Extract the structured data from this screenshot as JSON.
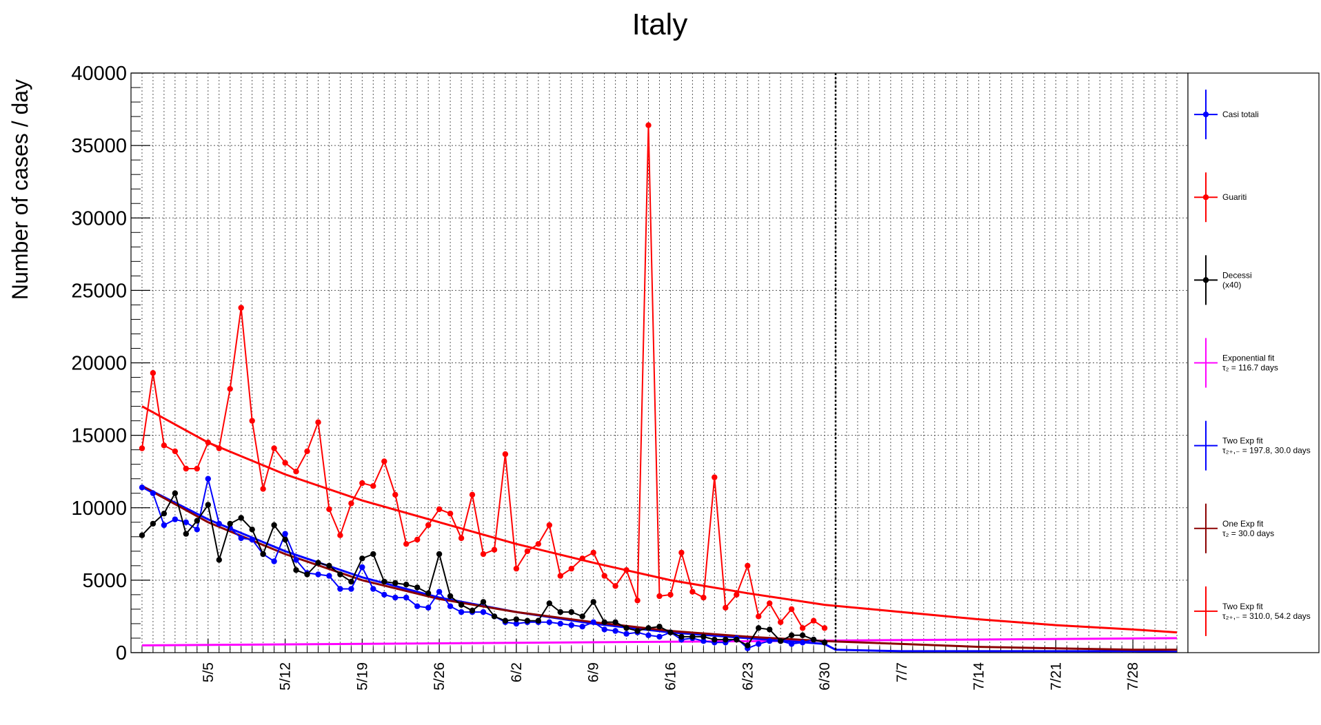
{
  "chart_data": {
    "type": "line",
    "title": "Italy",
    "xlabel": "",
    "ylabel": "Number of cases / day",
    "ylim": [
      0,
      40000
    ],
    "xlim": [
      "2020-04-28",
      "2020-08-02"
    ],
    "y_ticks": [
      "0",
      "5000",
      "10000",
      "15000",
      "20000",
      "25000",
      "30000",
      "35000",
      "40000"
    ],
    "x_ticks": [
      "5/5",
      "5/12",
      "5/19",
      "5/26",
      "6/2",
      "6/9",
      "6/16",
      "6/23",
      "6/30",
      "7/7",
      "7/14",
      "7/21",
      "7/28"
    ],
    "grid": true,
    "vertical_marker_date": "2020-07-01",
    "legend_position": "right",
    "series": [
      {
        "name": "Casi totali",
        "legend_lines": [
          "Casi totali"
        ],
        "color": "#0000ff",
        "style": "points",
        "start_date": "2020-04-29",
        "values": [
          11400,
          11000,
          8800,
          9200,
          9000,
          8500,
          12000,
          8900,
          8600,
          7900,
          7800,
          6800,
          6300,
          8200,
          6400,
          5500,
          5400,
          5300,
          4400,
          4400,
          5900,
          4400,
          4000,
          3800,
          3800,
          3200,
          3100,
          4200,
          3200,
          2800,
          2800,
          2800,
          2500,
          2100,
          2000,
          2100,
          2100,
          2100,
          2000,
          1900,
          1800,
          2100,
          1600,
          1500,
          1300,
          1400,
          1200,
          1100,
          1400,
          900,
          1000,
          800,
          700,
          700,
          1000,
          300,
          600,
          800,
          800,
          600,
          700,
          900,
          700
        ]
      },
      {
        "name": "Guariti",
        "legend_lines": [
          "Guariti"
        ],
        "color": "#ff0000",
        "style": "points",
        "start_date": "2020-04-29",
        "values": [
          14100,
          19300,
          14300,
          13900,
          12700,
          12700,
          14500,
          14100,
          18200,
          23800,
          16000,
          11300,
          14100,
          13100,
          12500,
          13900,
          15900,
          9900,
          8100,
          10300,
          11700,
          11500,
          13200,
          10900,
          7500,
          7800,
          8800,
          9900,
          9600,
          7900,
          10900,
          6800,
          7100,
          13700,
          5800,
          7000,
          7500,
          8800,
          5300,
          5800,
          6500,
          6900,
          5300,
          4600,
          5700,
          3600,
          36400,
          3900,
          4000,
          6900,
          4200,
          3800,
          12100,
          3100,
          4000,
          6000,
          2500,
          3400,
          2100,
          3000,
          1700,
          2200,
          1700
        ]
      },
      {
        "name": "Decessi",
        "legend_lines": [
          "Decessi",
          "(x40)"
        ],
        "color": "#000000",
        "style": "points",
        "start_date": "2020-04-29",
        "values": [
          8100,
          8900,
          9600,
          11000,
          8200,
          9100,
          10200,
          6400,
          8900,
          9300,
          8500,
          6800,
          8800,
          7800,
          5700,
          5400,
          6200,
          6000,
          5400,
          4900,
          6500,
          6800,
          4900,
          4800,
          4700,
          4500,
          4100,
          6800,
          3900,
          3300,
          2900,
          3500,
          2500,
          2200,
          2300,
          2200,
          2200,
          3400,
          2800,
          2800,
          2500,
          3500,
          2100,
          2100,
          1700,
          1500,
          1700,
          1800,
          1400,
          1100,
          1100,
          1100,
          900,
          900,
          900,
          500,
          1700,
          1600,
          800,
          1200,
          1200,
          900,
          700
        ]
      },
      {
        "name": "Exponential fit",
        "legend_lines": [
          "Exponential fit",
          "τ₂ = 116.7 days"
        ],
        "color": "#ff00ff",
        "style": "line",
        "x": [
          "2020-04-29",
          "2020-08-01"
        ],
        "values": [
          500,
          1000
        ]
      },
      {
        "name": "Two Exp fit",
        "legend_lines": [
          "Two Exp fit",
          "τ₂₊,₋ = 197.8, 30.0 days"
        ],
        "color": "#0000ff",
        "style": "line",
        "x": [
          "2020-04-29",
          "2020-05-05",
          "2020-05-12",
          "2020-05-19",
          "2020-05-26",
          "2020-06-02",
          "2020-06-09",
          "2020-06-16",
          "2020-06-23",
          "2020-06-30",
          "2020-07-01",
          "2020-07-07",
          "2020-07-14",
          "2020-07-21",
          "2020-07-28",
          "2020-08-01"
        ],
        "values": [
          11500,
          9200,
          7000,
          5200,
          3800,
          2800,
          2000,
          1400,
          1000,
          600,
          200,
          100,
          100,
          100,
          100,
          50
        ]
      },
      {
        "name": "One Exp fit",
        "legend_lines": [
          "One Exp fit",
          "τ₂ = 30.0 days"
        ],
        "color": "#8b0000",
        "style": "line",
        "x": [
          "2020-04-29",
          "2020-05-05",
          "2020-05-12",
          "2020-05-19",
          "2020-05-26",
          "2020-06-02",
          "2020-06-09",
          "2020-06-16",
          "2020-06-23",
          "2020-06-30",
          "2020-07-07",
          "2020-07-14",
          "2020-07-21",
          "2020-07-28",
          "2020-08-01"
        ],
        "values": [
          11500,
          9000,
          6800,
          5000,
          3700,
          2800,
          2100,
          1500,
          1100,
          800,
          600,
          400,
          300,
          200,
          200
        ]
      },
      {
        "name": "Two Exp fit",
        "legend_lines": [
          "Two Exp fit",
          "τ₂₊,₋ = 310.0, 54.2 days"
        ],
        "color": "#ff0000",
        "style": "line",
        "x": [
          "2020-04-29",
          "2020-05-05",
          "2020-05-12",
          "2020-05-19",
          "2020-05-26",
          "2020-06-02",
          "2020-06-09",
          "2020-06-16",
          "2020-06-23",
          "2020-06-30",
          "2020-07-07",
          "2020-07-14",
          "2020-07-21",
          "2020-07-28",
          "2020-08-01"
        ],
        "values": [
          17000,
          14500,
          12300,
          10500,
          9000,
          7500,
          6200,
          5000,
          4100,
          3300,
          2800,
          2300,
          1900,
          1600,
          1400
        ]
      }
    ]
  }
}
